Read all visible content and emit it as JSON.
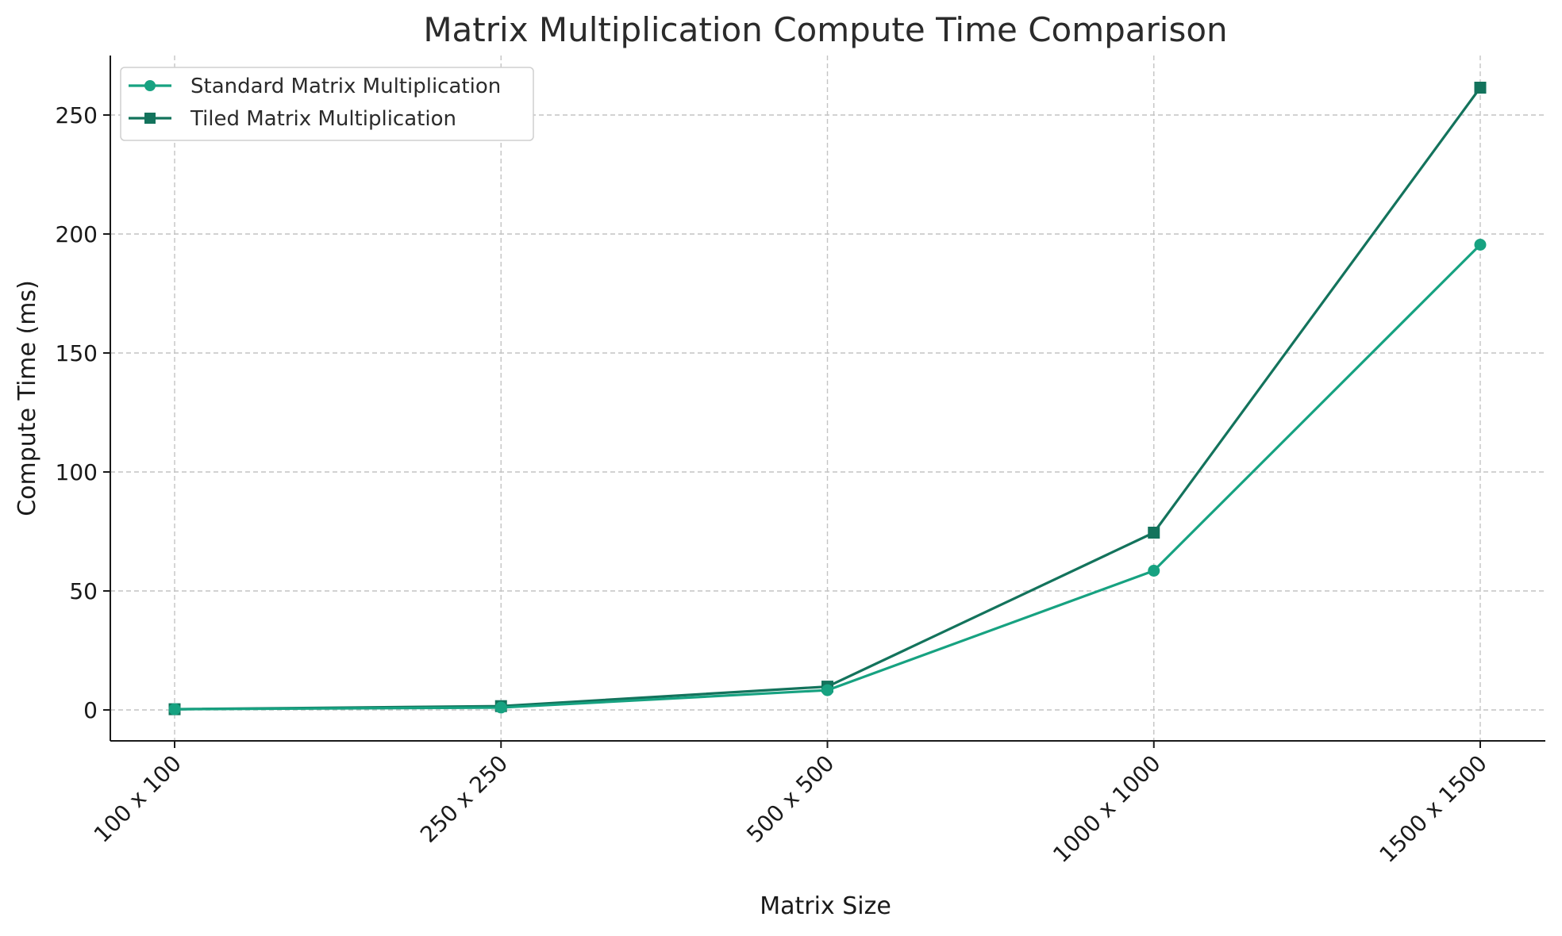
{
  "chart_data": {
    "type": "line",
    "title": "Matrix Multiplication Compute Time Comparison",
    "xlabel": "Matrix Size",
    "ylabel": "Compute Time (ms)",
    "categories": [
      "100 x 100",
      "250 x 250",
      "500 x 500",
      "1000 x 1000",
      "1500 x 1500"
    ],
    "yticks": [
      0,
      50,
      100,
      150,
      200,
      250
    ],
    "ylim": [
      -13,
      275
    ],
    "grid": true,
    "legend_position": "top-left",
    "series": [
      {
        "name": "Standard Matrix Multiplication",
        "values": [
          0.3,
          1.0,
          8.3,
          58.5,
          195.5
        ],
        "color": "#17a281",
        "marker": "circle"
      },
      {
        "name": "Tiled Matrix Multiplication",
        "values": [
          0.3,
          1.6,
          9.8,
          74.5,
          261.5
        ],
        "color": "#13735c",
        "marker": "square"
      }
    ]
  }
}
